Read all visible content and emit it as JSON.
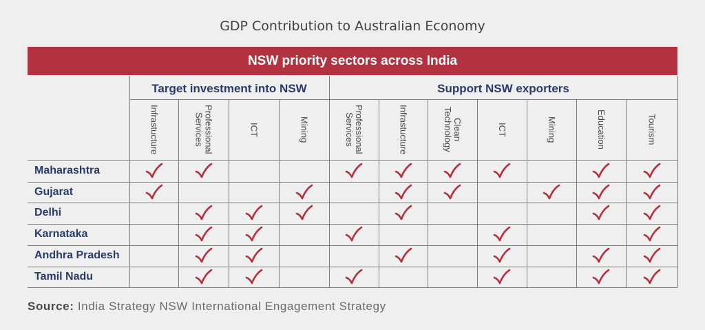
{
  "title": "GDP Contribution to Australian Economy",
  "banner": "NSW priority sectors across India",
  "groups": [
    "Target investment into NSW",
    "Support NSW exporters"
  ],
  "columns": [
    "Infrastucture",
    "Professional\nServices",
    "ICT",
    "Mining",
    "Professional\nServices",
    "Infrastucture",
    "Clean\nTechnology",
    "ICT",
    "Mining",
    "Education",
    "Tourism"
  ],
  "rows": [
    {
      "label": "Maharashtra",
      "checks": [
        1,
        1,
        0,
        0,
        1,
        1,
        1,
        1,
        0,
        1,
        1
      ]
    },
    {
      "label": "Gujarat",
      "checks": [
        1,
        0,
        0,
        1,
        0,
        1,
        1,
        0,
        1,
        1,
        1
      ]
    },
    {
      "label": "Delhi",
      "checks": [
        0,
        1,
        1,
        1,
        0,
        1,
        0,
        0,
        0,
        1,
        1
      ]
    },
    {
      "label": "Karnataka",
      "checks": [
        0,
        1,
        1,
        0,
        1,
        0,
        0,
        1,
        0,
        0,
        1
      ]
    },
    {
      "label": "Andhra Pradesh",
      "checks": [
        0,
        1,
        1,
        0,
        0,
        1,
        0,
        1,
        0,
        1,
        1
      ]
    },
    {
      "label": "Tamil Nadu",
      "checks": [
        0,
        1,
        1,
        0,
        1,
        0,
        0,
        1,
        0,
        1,
        1
      ]
    }
  ],
  "check_color": "#b2323f",
  "source_label": "Source:",
  "source_text": "India Strategy NSW International Engagement Strategy"
}
